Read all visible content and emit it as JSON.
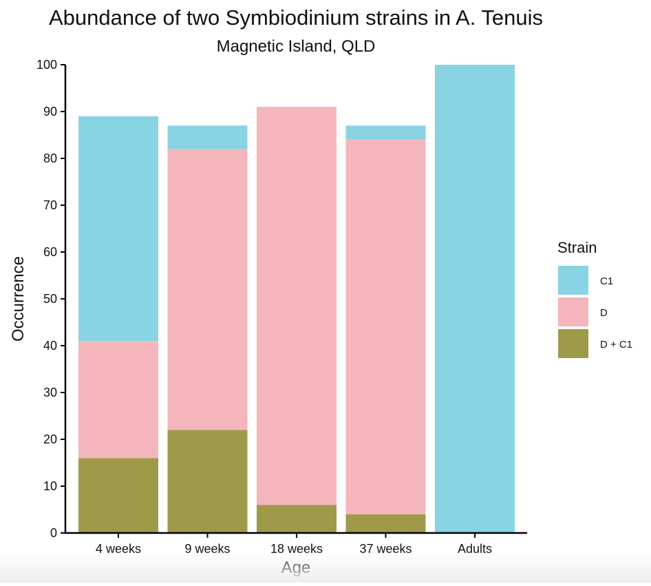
{
  "chart_data": {
    "type": "bar",
    "stacked": true,
    "title": "Abundance of two Symbiodinium strains in A. Tenuis",
    "subtitle": "Magnetic Island, QLD",
    "xlabel": "Age",
    "ylabel": "Occurrence",
    "ylim": [
      0,
      100
    ],
    "yticks": [
      0,
      10,
      20,
      30,
      40,
      50,
      60,
      70,
      80,
      90,
      100
    ],
    "categories": [
      "4 weeks",
      "9 weeks",
      "18 weeks",
      "37 weeks",
      "Adults"
    ],
    "series": [
      {
        "name": "D + C1",
        "color": "#9f9a4a",
        "values": [
          16,
          22,
          6,
          4,
          0
        ]
      },
      {
        "name": "D",
        "color": "#f5b5bd",
        "values": [
          25,
          60,
          85,
          80,
          0
        ]
      },
      {
        "name": "C1",
        "color": "#88d4e3",
        "values": [
          48,
          5,
          0,
          3,
          100
        ]
      }
    ],
    "legend": {
      "title": "Strain",
      "position": "right",
      "order": [
        "C1",
        "D",
        "D + C1"
      ]
    },
    "grid": false
  }
}
